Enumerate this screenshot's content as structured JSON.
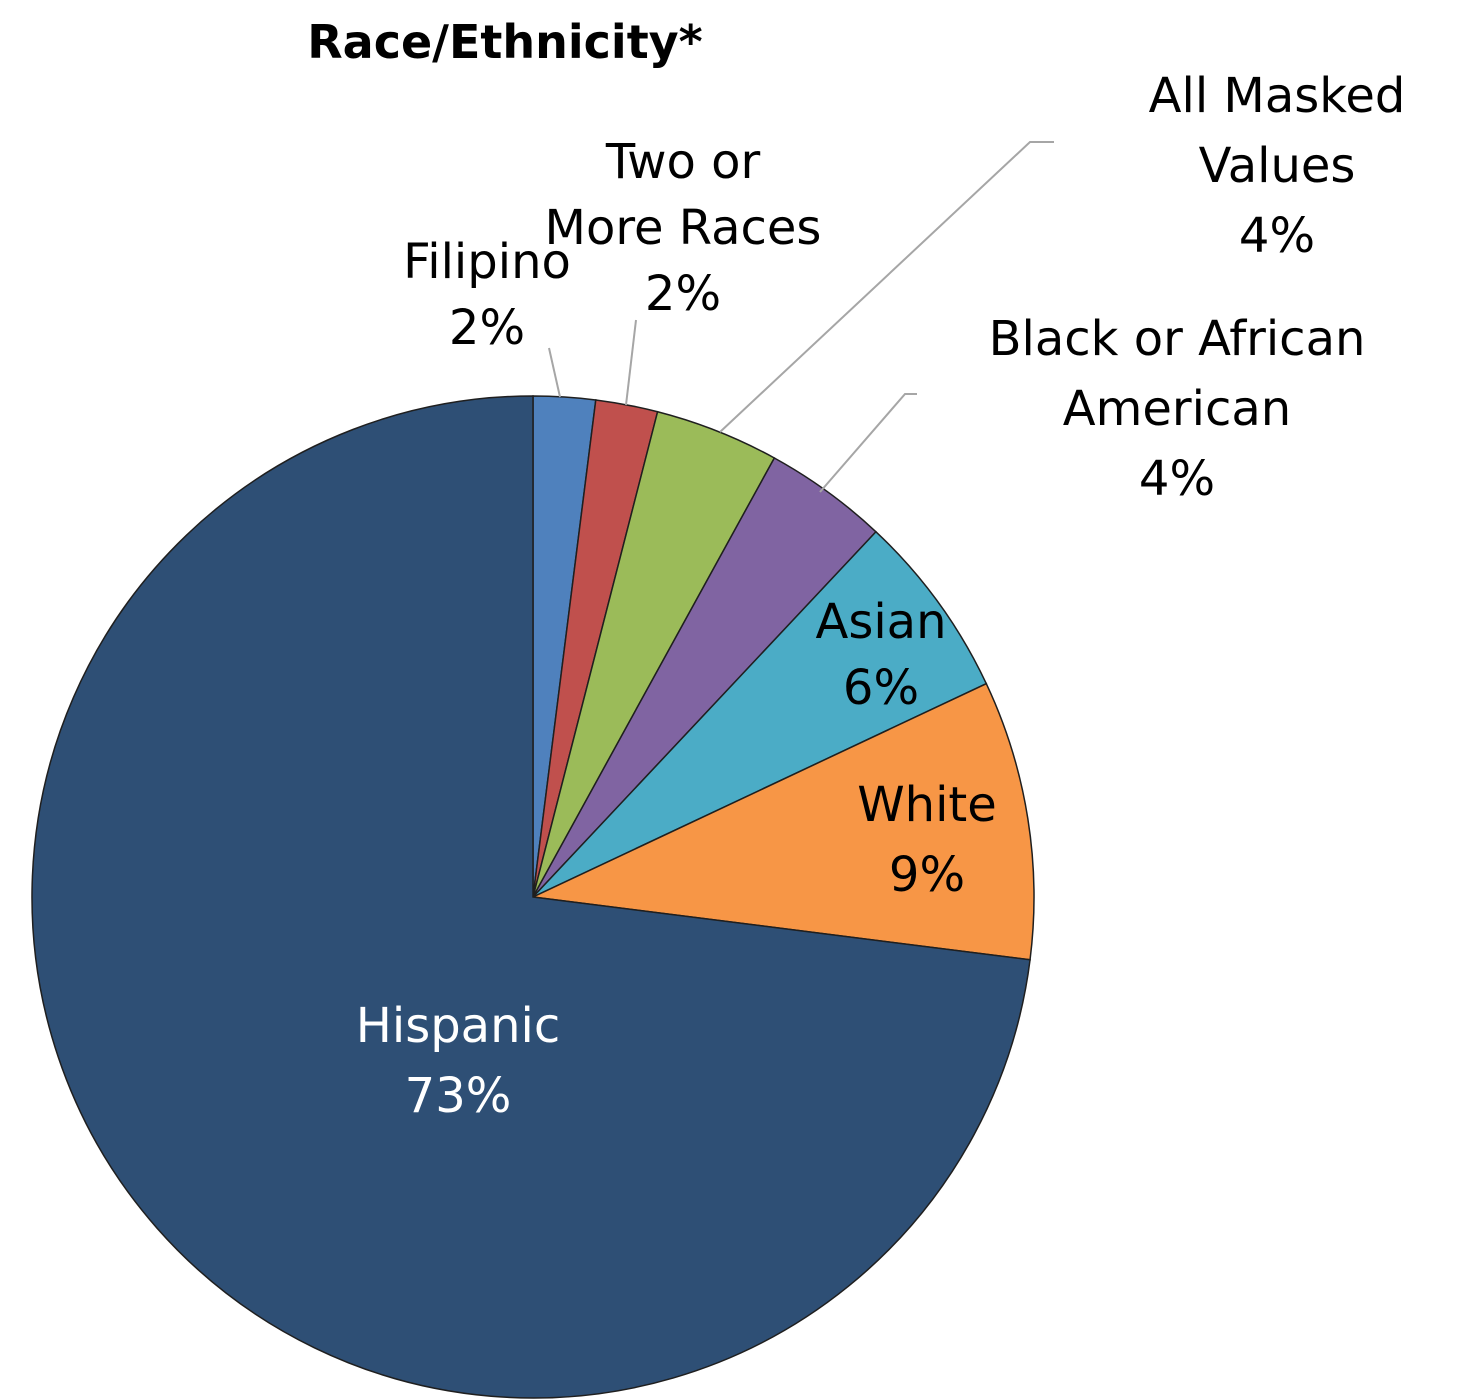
{
  "chart_data": {
    "type": "pie",
    "title": "Race/Ethnicity*",
    "start_angle_deg": 0,
    "direction": "clockwise",
    "slices": [
      {
        "name": "Filipino",
        "value": 2,
        "label_lines": [
          "Filipino",
          "2%"
        ],
        "color": "#4f81bd",
        "label_color": "#000000"
      },
      {
        "name": "Two or More Races",
        "value": 2,
        "label_lines": [
          "Two or",
          "More Races",
          "2%"
        ],
        "color": "#c0504d",
        "label_color": "#000000"
      },
      {
        "name": "All Masked Values",
        "value": 4,
        "label_lines": [
          "All Masked",
          "Values",
          "4%"
        ],
        "color": "#9bbb59",
        "label_color": "#000000"
      },
      {
        "name": "Black or African American",
        "value": 4,
        "label_lines": [
          "Black or African",
          "American",
          "4%"
        ],
        "color": "#8064a2",
        "label_color": "#000000"
      },
      {
        "name": "Asian",
        "value": 6,
        "label_lines": [
          "Asian",
          "6%"
        ],
        "color": "#4bacc6",
        "label_color": "#000000"
      },
      {
        "name": "White",
        "value": 9,
        "label_lines": [
          "White",
          "9%"
        ],
        "color": "#f79646",
        "label_color": "#000000"
      },
      {
        "name": "Hispanic",
        "value": 73,
        "label_lines": [
          "Hispanic",
          "73%"
        ],
        "color": "#2e4f75",
        "label_color": "#ffffff"
      }
    ]
  }
}
